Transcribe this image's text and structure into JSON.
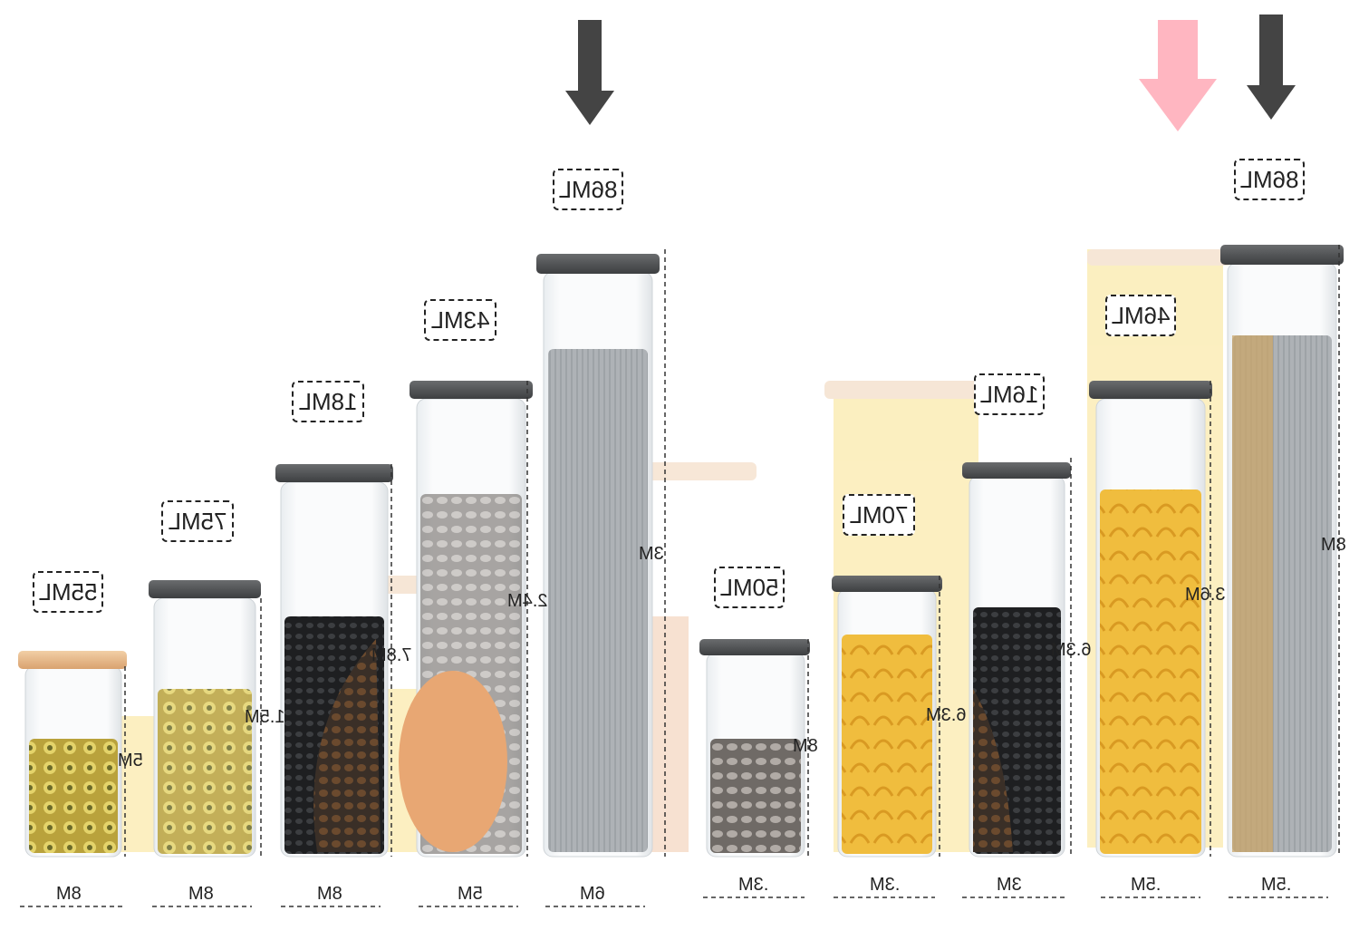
{
  "capacity_labels": [
    "55ML",
    "75ML",
    "18ML",
    "43ML",
    "86ML",
    "50ML",
    "70ML",
    "16ML",
    "46ML",
    "86ML"
  ],
  "height_labels": [
    "5M",
    "1.5M",
    "7.8M",
    "2.4M",
    "3M",
    "8M",
    "6.3M",
    "6.3M",
    "3.6M",
    "8M"
  ],
  "width_labels": [
    "8M",
    "8M",
    "8M",
    "5M",
    "6M",
    ".3M",
    ".3M",
    "3M",
    ".5M",
    ".5M"
  ],
  "arrows": [
    {
      "color": "#444444",
      "icon": "down-arrow-icon"
    },
    {
      "color": "#ffb6c1",
      "icon": "down-arrow-icon"
    },
    {
      "color": "#444444",
      "icon": "down-arrow-icon"
    }
  ],
  "colors": {
    "glass": "#f3f5f7",
    "lid_dark": "#4d4f51",
    "lid_wood": "#e7b98c",
    "pasta": "#f3c54a",
    "arrow_pink": "#ffb6c1"
  }
}
